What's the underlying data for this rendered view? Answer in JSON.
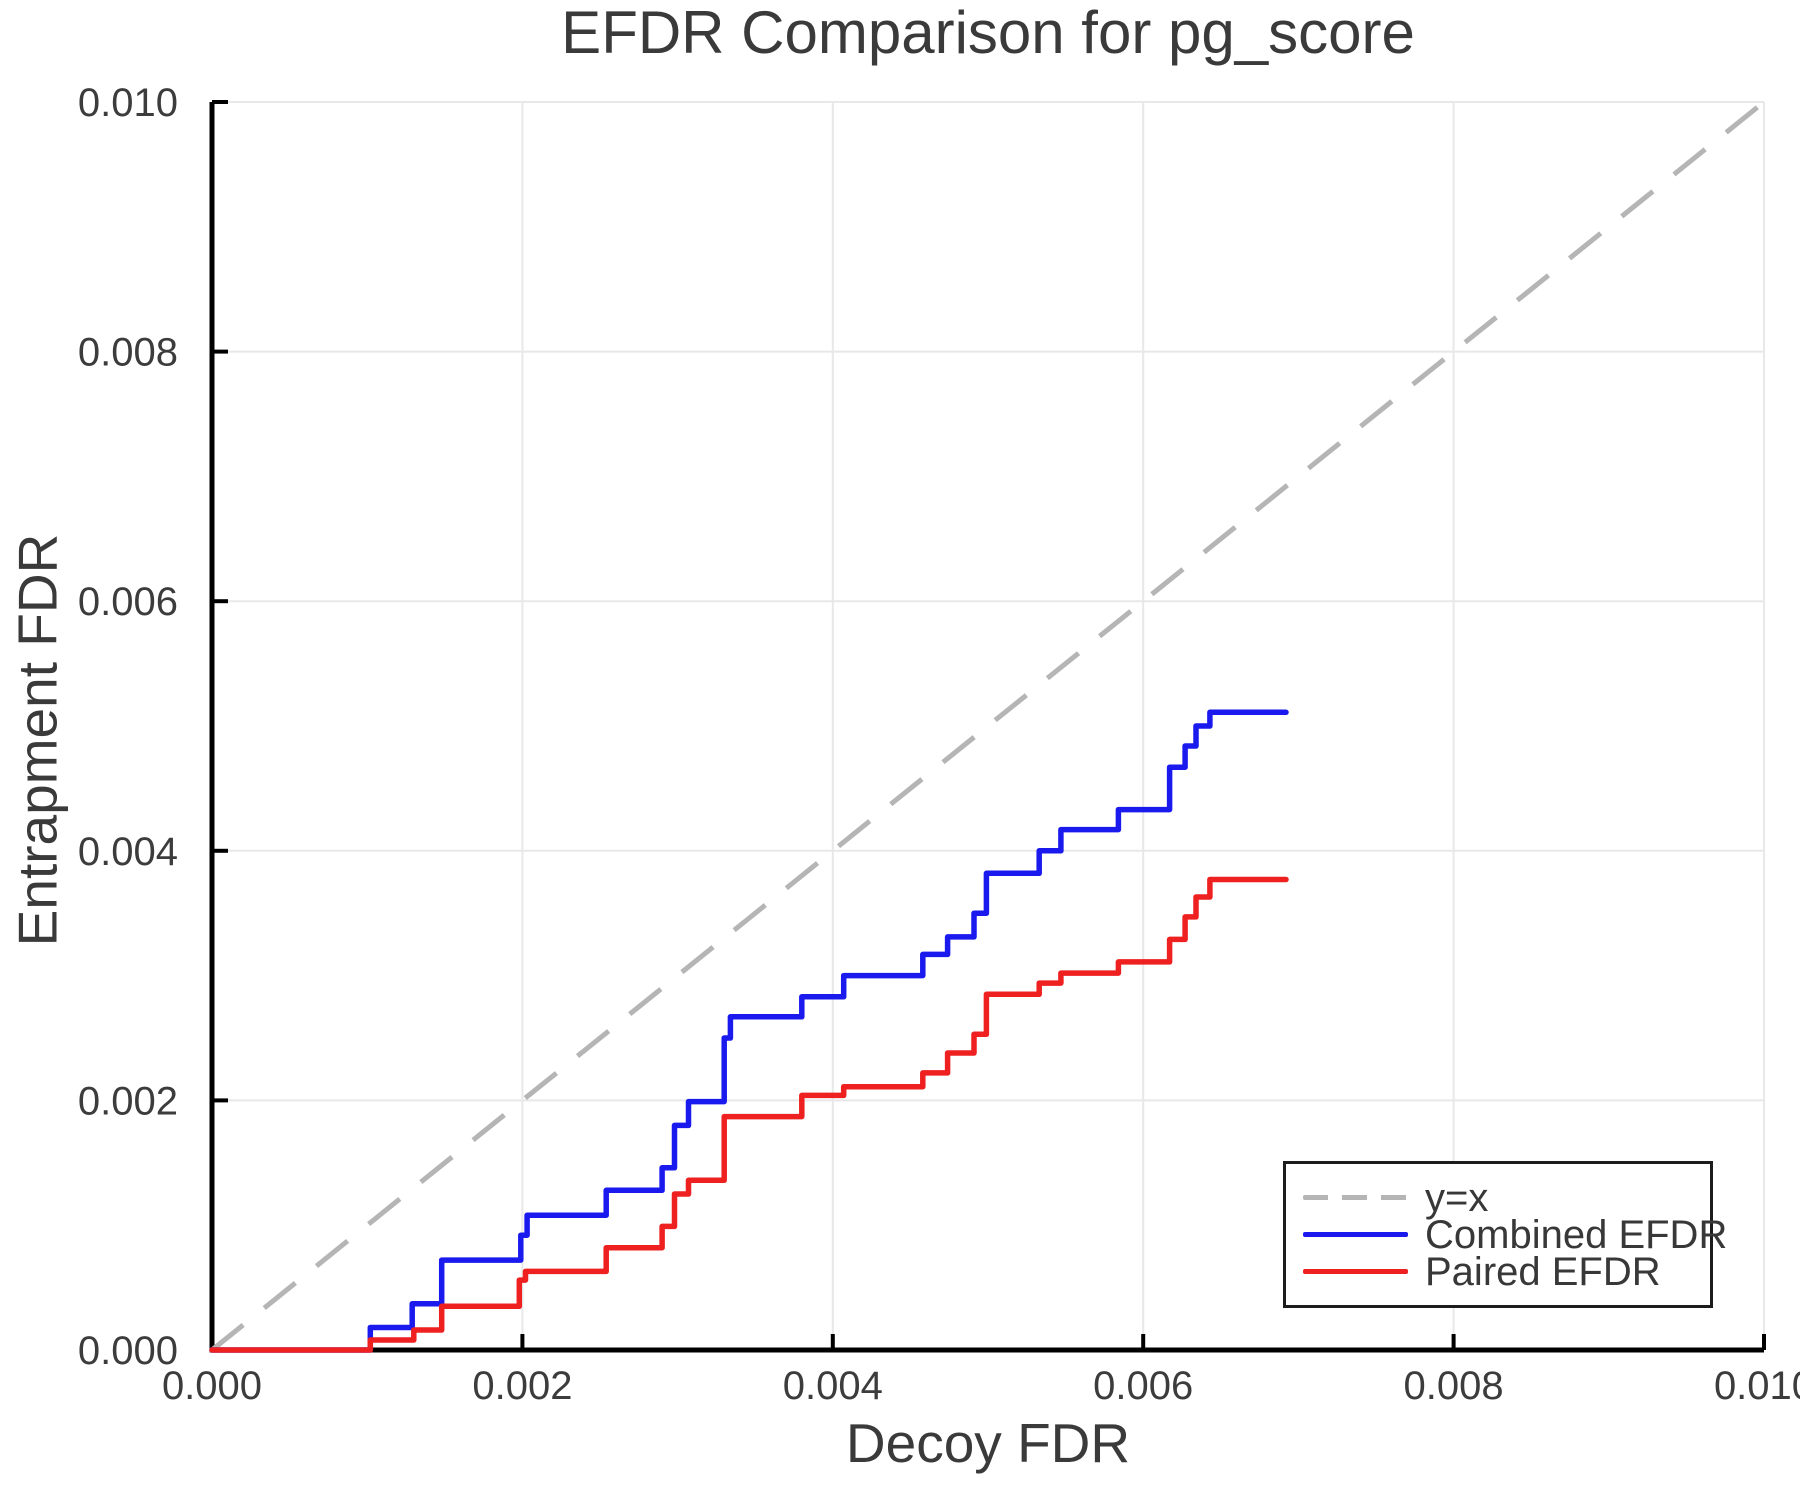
{
  "title": "EFDR Comparison for pg_score",
  "axes": {
    "xlabel": "Decoy FDR",
    "ylabel": "Entrapment FDR"
  },
  "legend": {
    "items": [
      {
        "label": "y=x",
        "color": "#b5b5b5",
        "dashed": true
      },
      {
        "label": "Combined EFDR",
        "color": "#1a1aef",
        "dashed": false
      },
      {
        "label": "Paired EFDR",
        "color": "#ee2020",
        "dashed": false
      }
    ]
  },
  "chart_data": {
    "type": "line",
    "title": "EFDR Comparison for pg_score",
    "xlabel": "Decoy FDR",
    "ylabel": "Entrapment FDR",
    "xlim": [
      0,
      0.01
    ],
    "ylim": [
      0,
      0.01
    ],
    "xticks": [
      0,
      0.002,
      0.004,
      0.006,
      0.008,
      0.01
    ],
    "xtick_labels": [
      "0.000",
      "0.002",
      "0.004",
      "0.006",
      "0.008",
      "0.010"
    ],
    "yticks": [
      0,
      0.002,
      0.004,
      0.006,
      0.008,
      0.01
    ],
    "ytick_labels": [
      "0.000",
      "0.002",
      "0.004",
      "0.006",
      "0.008",
      "0.010"
    ],
    "grid": true,
    "grid_color": "#e8e8e8",
    "axis_color": "#000000",
    "tick_label_color": "#3c3c3c",
    "legend_position": "lower right",
    "series": [
      {
        "name": "y=x",
        "color": "#b5b5b5",
        "dashed": true,
        "points": [
          [
            0,
            0
          ],
          [
            0.01,
            0.01
          ]
        ]
      },
      {
        "name": "Combined EFDR",
        "color": "#1a1aef",
        "step": true,
        "start": [
          0,
          0
        ],
        "end_x": 0.00692,
        "steps": [
          [
            0.00102,
            0.00018
          ],
          [
            0.00129,
            0.00037
          ],
          [
            0.00148,
            0.00072
          ],
          [
            0.00199,
            0.00092
          ],
          [
            0.00203,
            0.00108
          ],
          [
            0.00254,
            0.00128
          ],
          [
            0.0029,
            0.00146
          ],
          [
            0.00298,
            0.0018
          ],
          [
            0.00307,
            0.00199
          ],
          [
            0.0033,
            0.0025
          ],
          [
            0.00334,
            0.00267
          ],
          [
            0.0038,
            0.00283
          ],
          [
            0.00407,
            0.003
          ],
          [
            0.00458,
            0.00317
          ],
          [
            0.00474,
            0.00331
          ],
          [
            0.00491,
            0.0035
          ],
          [
            0.00499,
            0.00382
          ],
          [
            0.00533,
            0.004
          ],
          [
            0.00547,
            0.00417
          ],
          [
            0.00584,
            0.00433
          ],
          [
            0.00617,
            0.00467
          ],
          [
            0.00627,
            0.00484
          ],
          [
            0.00634,
            0.005
          ],
          [
            0.00643,
            0.00511
          ]
        ]
      },
      {
        "name": "Paired EFDR",
        "color": "#ee2020",
        "step": true,
        "start": [
          0,
          0
        ],
        "end_x": 0.00692,
        "steps": [
          [
            0.00102,
            8e-05
          ],
          [
            0.0013,
            0.00016
          ],
          [
            0.00148,
            0.00035
          ],
          [
            0.00198,
            0.00056
          ],
          [
            0.00202,
            0.00063
          ],
          [
            0.00254,
            0.00082
          ],
          [
            0.0029,
            0.00099
          ],
          [
            0.00298,
            0.00125
          ],
          [
            0.00307,
            0.00136
          ],
          [
            0.0033,
            0.00187
          ],
          [
            0.0038,
            0.00204
          ],
          [
            0.00407,
            0.00211
          ],
          [
            0.00458,
            0.00222
          ],
          [
            0.00474,
            0.00238
          ],
          [
            0.00491,
            0.00253
          ],
          [
            0.00499,
            0.00285
          ],
          [
            0.00533,
            0.00294
          ],
          [
            0.00547,
            0.00302
          ],
          [
            0.00584,
            0.00311
          ],
          [
            0.00617,
            0.00329
          ],
          [
            0.00627,
            0.00347
          ],
          [
            0.00634,
            0.00363
          ],
          [
            0.00643,
            0.00377
          ]
        ]
      }
    ]
  }
}
